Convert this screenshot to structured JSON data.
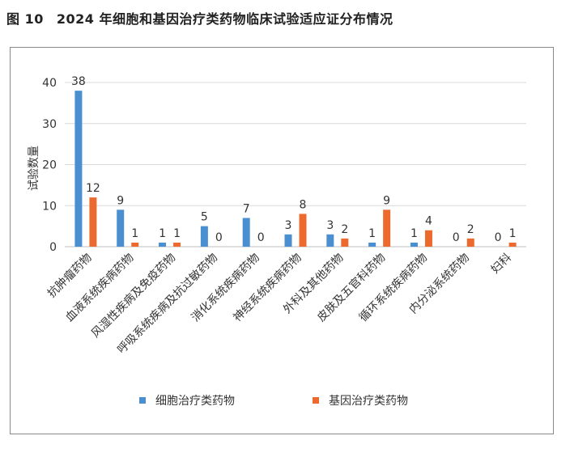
{
  "figure": {
    "number": "图 10",
    "title": "2024 年细胞和基因治疗类药物临床试验适应证分布情况"
  },
  "colors": {
    "cell": "#4a8fd0",
    "gene": "#ec6a2e",
    "grid": "#d9d9d9",
    "text": "#333333"
  },
  "chart_data": {
    "type": "bar",
    "title": "",
    "xlabel": "",
    "ylabel": "试验数量",
    "ylim": [
      0,
      40
    ],
    "yticks": [
      0,
      10,
      20,
      30,
      40
    ],
    "grid": true,
    "legend": "bottom",
    "categories": [
      "抗肿瘤药物",
      "血液系统疾病药物",
      "风湿性疾病及免疫药物",
      "呼吸系统疾病及抗过敏药物",
      "消化系统疾病药物",
      "神经系统疾病药物",
      "外科及其他药物",
      "皮肤及五官科药物",
      "循环系统疾病药物",
      "内分泌系统药物",
      "妇科"
    ],
    "series": [
      {
        "name": "细胞治疗类药物",
        "values": [
          38,
          9,
          1,
          5,
          7,
          3,
          3,
          1,
          1,
          0,
          0
        ]
      },
      {
        "name": "基因治疗类药物",
        "values": [
          12,
          1,
          1,
          0,
          0,
          8,
          2,
          9,
          4,
          2,
          1
        ]
      }
    ]
  }
}
